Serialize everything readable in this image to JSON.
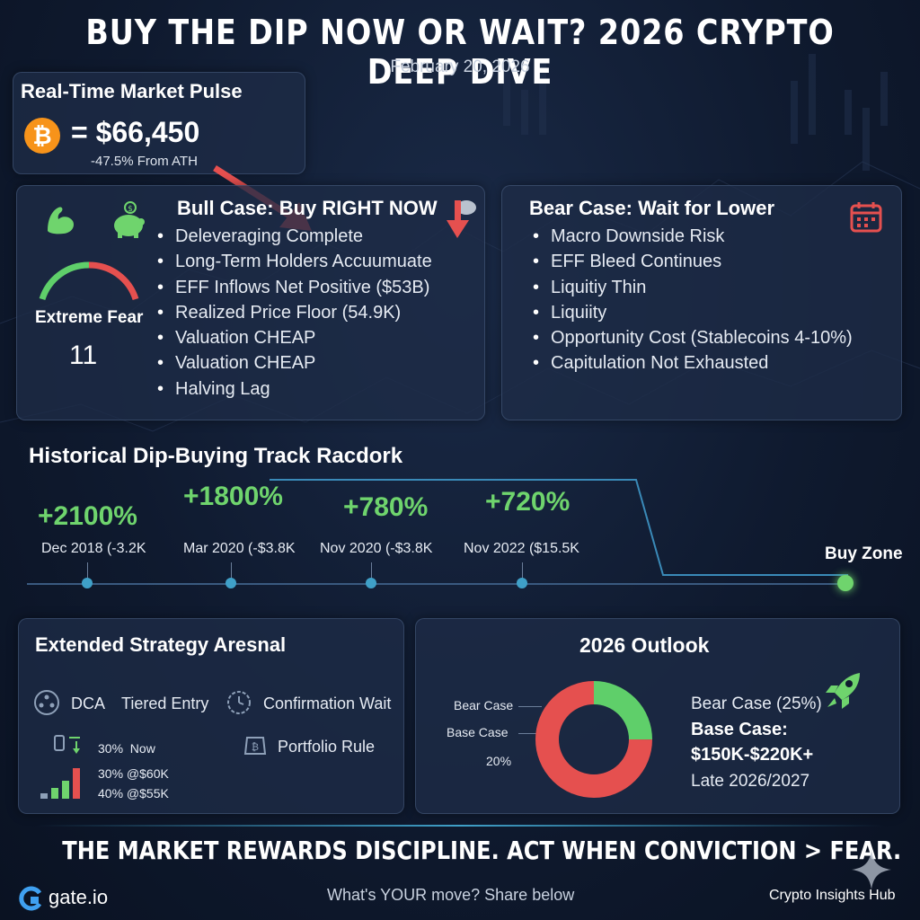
{
  "header": {
    "title": "BUY THE DIP NOW OR WAIT? 2026 CRYPTO DEEP DIVE",
    "date": "February 20, 2026"
  },
  "pulse": {
    "title": "Real-Time Market Pulse",
    "price": "= $66,450",
    "change": "-47.5% From ATH"
  },
  "bull": {
    "title": "Bull Case: Buy RIGHT NOW",
    "items": [
      "Deleveraging Complete",
      "Long-Term Holders Accuumuate",
      "EFF Inflows Net Positive ($53B)",
      "Realized Price Floor (54.9K)",
      "Valuation CHEAP",
      "Valuation CHEAP",
      "Halving Lag"
    ],
    "gauge_label": "Extreme Fear",
    "gauge_value": "11"
  },
  "bear": {
    "title": "Bear Case: Wait for Lower",
    "items": [
      "Macro Downside Risk",
      "EFF Bleed Continues",
      "Liquitiy Thin",
      "Liquiity",
      "Opportunity Cost (Stablecoins 4-10%)",
      "Capitulation Not Exhausted"
    ]
  },
  "history": {
    "title": "Historical Dip-Buying Track Racdork",
    "events": [
      {
        "gain": "+2100%",
        "when": "Dec 2018 (-3.2K"
      },
      {
        "gain": "+1800%",
        "when": "Mar 2020 (-$3.8K"
      },
      {
        "gain": "+780%",
        "when": "Nov 2020 (-$3.8K"
      },
      {
        "gain": "+720%",
        "when": "Nov 2022 ($15.5K"
      }
    ],
    "buy_zone": "Buy Zone"
  },
  "strategy": {
    "title": "Extended Strategy Aresnal",
    "dca": "DCA",
    "tiered": "Tiered Entry",
    "confirm": "Confirmation Wait",
    "portfolio": "Portfolio Rule",
    "tiers": [
      "30%  Now",
      "30% @$60K",
      "40% @$55K"
    ]
  },
  "outlook": {
    "title": "2026 Outlook",
    "labels": [
      "Bear Case",
      "Base Case",
      "20%"
    ],
    "bear_line": "Bear Case (25%)",
    "base_label": "Base Case:",
    "base_range": "$150K-$220K+",
    "timing": "Late 2026/2027"
  },
  "chart_data": {
    "type": "pie",
    "title": "2026 Outlook",
    "slices": [
      {
        "name": "Bear Case",
        "value": 25,
        "color": "#5fcf6a"
      },
      {
        "name": "Base Case",
        "value": 75,
        "color": "#e5504f"
      }
    ]
  },
  "footer": {
    "tagline": "THE MARKET REWARDS DISCIPLINE. ACT WHEN CONVICTION > FEAR.",
    "brand": "gate.io",
    "cta": "What's YOUR move? Share below",
    "hub": "Crypto Insights Hub"
  },
  "colors": {
    "green": "#6fd46d",
    "red": "#e5504f",
    "bitcoin": "#f7931a",
    "accent_blue": "#3fa0c8"
  }
}
